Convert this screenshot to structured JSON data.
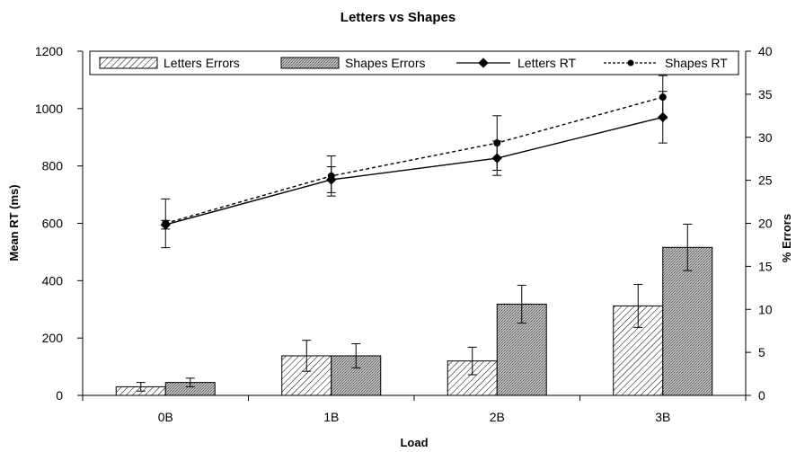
{
  "chart_data": {
    "type": "bar",
    "title": "Letters vs Shapes",
    "xlabel": "Load",
    "ylabel": "Mean RT (ms)",
    "y2label": "% Errors",
    "categories": [
      "0B",
      "1B",
      "2B",
      "3B"
    ],
    "ylim": [
      0,
      1200
    ],
    "yticks": [
      0,
      200,
      400,
      600,
      800,
      1000,
      1200
    ],
    "y2lim": [
      0,
      40
    ],
    "y2ticks": [
      0,
      5,
      10,
      15,
      20,
      25,
      30,
      35,
      40
    ],
    "legend_position": "top",
    "grid": false,
    "bar_series": [
      {
        "name": "Letters Errors",
        "axis": "right",
        "pattern": "diagonal-hatch",
        "values": [
          1.0,
          4.6,
          4.0,
          10.4
        ],
        "error": [
          0.5,
          1.8,
          1.6,
          2.5
        ]
      },
      {
        "name": "Shapes Errors",
        "axis": "right",
        "pattern": "stipple",
        "values": [
          1.5,
          4.6,
          10.6,
          17.2
        ],
        "error": [
          0.5,
          1.4,
          2.2,
          2.7
        ]
      }
    ],
    "line_series": [
      {
        "name": "Letters RT",
        "axis": "left",
        "line_style": "solid",
        "marker": "diamond",
        "values": [
          595,
          752,
          827,
          970
        ],
        "error": [
          15,
          45,
          60,
          90
        ]
      },
      {
        "name": "Shapes RT",
        "axis": "left",
        "line_style": "dashed",
        "marker": "circle",
        "values": [
          600,
          765,
          880,
          1040
        ],
        "error": [
          85,
          70,
          95,
          75
        ]
      }
    ],
    "colors": {
      "axis": "#000000",
      "bar_fill": "#ffffff",
      "stipple": "#808080"
    }
  }
}
